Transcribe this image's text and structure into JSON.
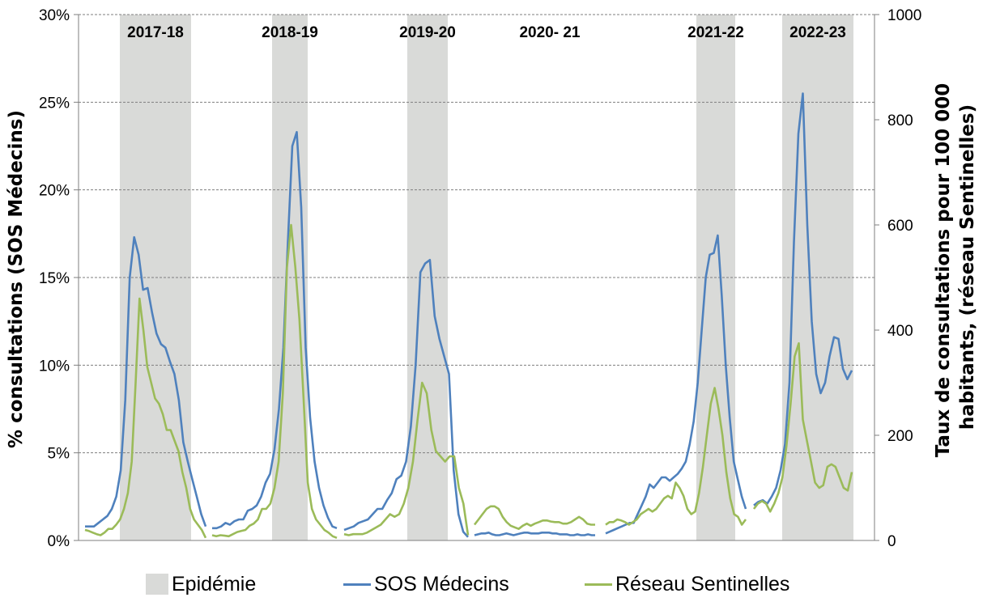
{
  "chart_data": {
    "type": "line",
    "title": "",
    "ylabel_left": "% consultations (SOS Médecins)",
    "ylabel_right": "Taux de consultations pour 100 000 habitants, (réseau Sentinelles)",
    "left_axis": {
      "ylim": [
        0,
        30
      ],
      "ticks": [
        "0%",
        "5%",
        "10%",
        "15%",
        "20%",
        "25%",
        "30%"
      ]
    },
    "right_axis": {
      "ylim": [
        0,
        1000
      ],
      "ticks": [
        "0",
        "200",
        "400",
        "600",
        "800",
        "1000"
      ]
    },
    "grid": "horizontal dashed",
    "legend_position": "bottom",
    "legend": {
      "epidemic": "Epidémie",
      "sos": "SOS Médecins",
      "sentinelles": "Réseau Sentinelles"
    },
    "colors": {
      "sos": "#4f81bd",
      "sentinelles": "#9bbb59",
      "epidemic": "#d9dad8"
    },
    "seasons": [
      {
        "label": "2017-18",
        "epidemic": true
      },
      {
        "label": "2018-19",
        "epidemic": true
      },
      {
        "label": "2019-20",
        "epidemic": true
      },
      {
        "label": "2020- 21",
        "epidemic": false
      },
      {
        "label": "2021-22",
        "epidemic": true
      },
      {
        "label": "2022-23",
        "epidemic": true
      }
    ],
    "series": [
      {
        "name": "SOS Médecins",
        "axis": "left",
        "segments": [
          [
            0.8,
            0.8,
            0.8,
            1.0,
            1.2,
            1.4,
            1.8,
            2.5,
            4.0,
            8.0,
            15.0,
            17.3,
            16.3,
            14.3,
            14.4,
            13.0,
            11.8,
            11.2,
            11.0,
            10.2,
            9.5,
            8.0,
            5.6,
            4.5,
            3.5,
            2.5,
            1.5,
            0.8
          ],
          [
            0.7,
            0.7,
            0.8,
            1.0,
            0.9,
            1.1,
            1.2,
            1.2,
            1.7,
            1.8,
            2.0,
            2.5,
            3.3,
            3.8,
            5.2,
            7.5,
            11.0,
            17.0,
            22.5,
            23.3,
            19.0,
            11.0,
            7.0,
            4.5,
            3.0,
            2.0,
            1.3,
            0.8,
            0.7
          ],
          [
            0.6,
            0.7,
            0.8,
            1.0,
            1.1,
            1.2,
            1.5,
            1.8,
            1.8,
            2.3,
            2.7,
            3.5,
            3.7,
            4.5,
            6.5,
            10.0,
            15.3,
            15.8,
            16.0,
            12.8,
            11.5,
            10.5,
            9.5,
            4.0,
            1.5,
            0.5,
            0.2
          ],
          [
            0.3,
            0.35,
            0.4,
            0.4,
            0.45,
            0.35,
            0.3,
            0.3,
            0.35,
            0.4,
            0.35,
            0.3,
            0.35,
            0.4,
            0.45,
            0.45,
            0.4,
            0.4,
            0.4,
            0.45,
            0.45,
            0.45,
            0.4,
            0.4,
            0.35,
            0.35,
            0.35,
            0.3,
            0.3,
            0.35,
            0.3,
            0.3,
            0.35,
            0.3,
            0.3
          ],
          [
            0.4,
            0.5,
            0.6,
            0.7,
            0.8,
            0.9,
            1.0,
            1.0,
            1.5,
            2.0,
            2.5,
            3.2,
            3.0,
            3.3,
            3.6,
            3.6,
            3.4,
            3.6,
            3.8,
            4.1,
            4.5,
            5.5,
            6.8,
            9.0,
            12.0,
            15.0,
            16.3,
            16.4,
            17.4,
            14.0,
            10.0,
            7.0,
            4.5,
            3.5,
            2.5,
            1.8
          ],
          [
            2.0,
            2.2,
            2.3,
            2.1,
            2.5,
            3.0,
            4.0,
            5.5,
            9.0,
            17.0,
            23.2,
            25.5,
            18.0,
            12.5,
            9.5,
            8.4,
            9.0,
            10.5,
            11.6,
            11.5,
            9.8,
            9.2,
            9.7
          ]
        ]
      },
      {
        "name": "Réseau Sentinelles",
        "axis": "right",
        "segments": [
          [
            20,
            18,
            15,
            12,
            10,
            15,
            22,
            22,
            30,
            40,
            60,
            90,
            150,
            300,
            460,
            400,
            330,
            300,
            270,
            260,
            240,
            210,
            210,
            190,
            170,
            130,
            100,
            60,
            40,
            30,
            20,
            5
          ],
          [
            10,
            8,
            10,
            9,
            8,
            12,
            16,
            18,
            20,
            28,
            32,
            40,
            60,
            60,
            70,
            100,
            150,
            280,
            520,
            600,
            520,
            420,
            270,
            110,
            60,
            40,
            30,
            20,
            15,
            8,
            5
          ],
          [
            12,
            10,
            12,
            12,
            12,
            15,
            20,
            25,
            30,
            40,
            50,
            45,
            50,
            70,
            100,
            150,
            230,
            300,
            280,
            210,
            170,
            160,
            150,
            160,
            160,
            100,
            70,
            10
          ],
          [
            30,
            40,
            50,
            60,
            65,
            65,
            60,
            45,
            35,
            28,
            25,
            22,
            28,
            32,
            28,
            32,
            35,
            38,
            38,
            36,
            35,
            35,
            32,
            32,
            35,
            40,
            45,
            40,
            32,
            30,
            30
          ],
          [
            30,
            35,
            35,
            40,
            38,
            35,
            30,
            35,
            40,
            50,
            55,
            60,
            55,
            60,
            70,
            80,
            85,
            80,
            110,
            100,
            85,
            60,
            50,
            55,
            90,
            140,
            200,
            260,
            290,
            250,
            200,
            130,
            80,
            50,
            45,
            30,
            40
          ],
          [
            60,
            70,
            75,
            70,
            55,
            70,
            90,
            120,
            180,
            260,
            350,
            375,
            230,
            190,
            150,
            110,
            100,
            105,
            140,
            145,
            140,
            120,
            100,
            95,
            130
          ]
        ]
      }
    ]
  }
}
